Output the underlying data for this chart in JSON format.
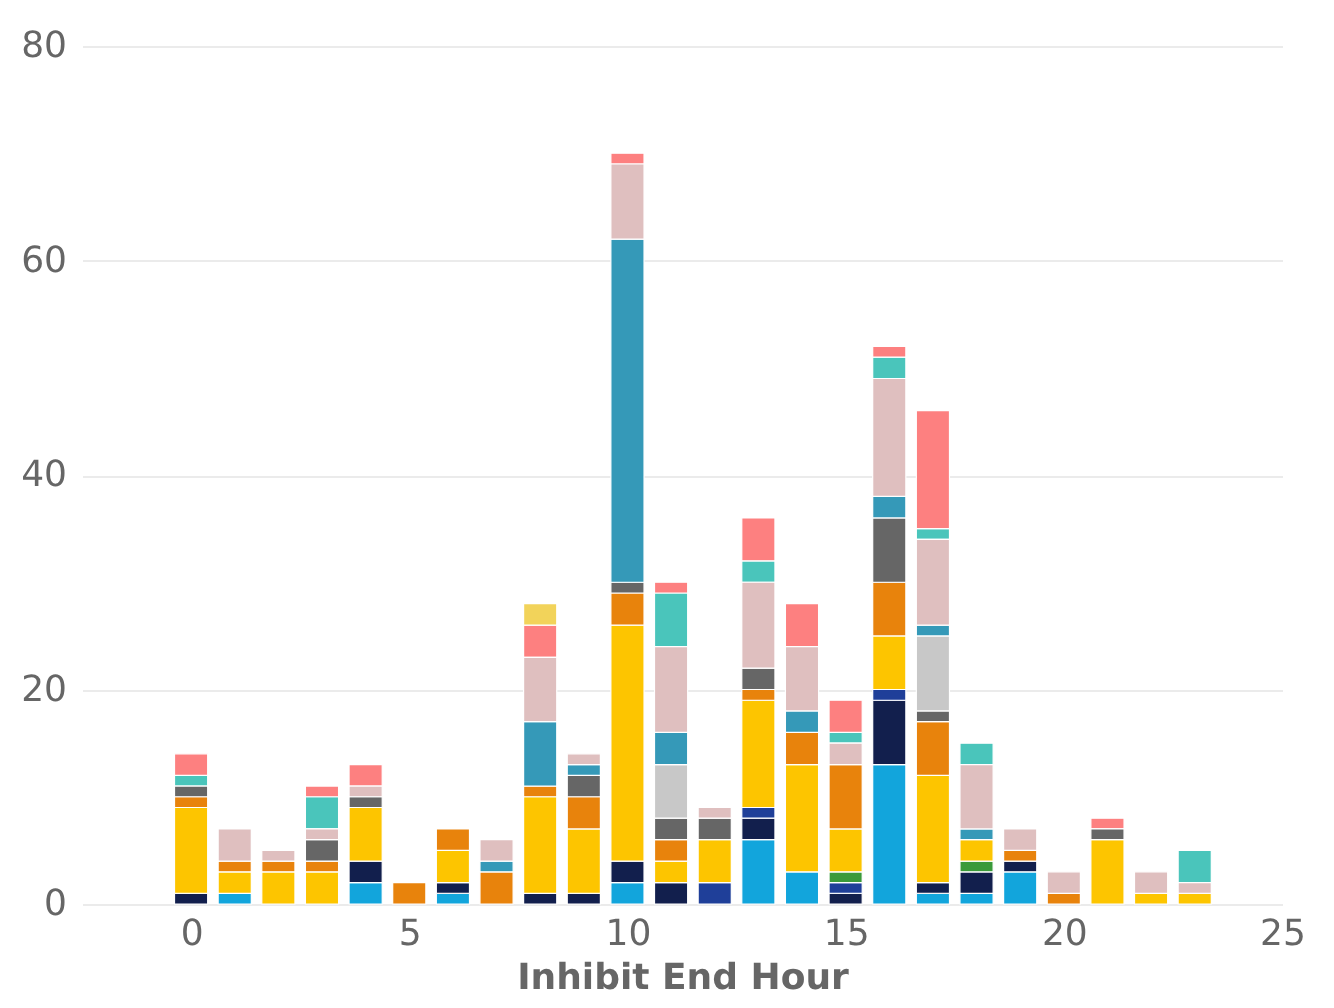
{
  "chart_data": {
    "type": "bar",
    "stacked": true,
    "xlabel": "Inhibit End Hour",
    "x": [
      0,
      1,
      2,
      3,
      4,
      5,
      6,
      7,
      8,
      9,
      10,
      11,
      12,
      13,
      14,
      15,
      16,
      17,
      18,
      19,
      20,
      21,
      22,
      23
    ],
    "xlim": [
      -2.5,
      25
    ],
    "xticks": [
      0,
      5,
      10,
      15,
      20,
      25
    ],
    "ylim": [
      0,
      80
    ],
    "yticks": [
      0,
      20,
      40,
      60,
      80
    ],
    "grid": "y",
    "legend": false,
    "series": [
      {
        "color": "#12a5dc",
        "values": [
          null,
          1,
          null,
          null,
          2,
          null,
          1,
          null,
          null,
          null,
          2,
          null,
          null,
          6,
          3,
          null,
          13,
          1,
          1,
          3,
          null,
          null,
          null,
          null
        ]
      },
      {
        "color": "#121f4d",
        "values": [
          1,
          null,
          null,
          null,
          2,
          null,
          1,
          null,
          1,
          1,
          2,
          2,
          null,
          2,
          null,
          1,
          6,
          1,
          2,
          1,
          null,
          null,
          null,
          null
        ]
      },
      {
        "color": "#1f3f99",
        "values": [
          null,
          null,
          null,
          null,
          null,
          null,
          null,
          null,
          null,
          null,
          null,
          null,
          2,
          1,
          null,
          1,
          1,
          null,
          null,
          null,
          null,
          null,
          null,
          null
        ]
      },
      {
        "color": "#3a9a3a",
        "values": [
          null,
          null,
          null,
          null,
          null,
          null,
          null,
          null,
          null,
          null,
          null,
          null,
          null,
          null,
          null,
          1,
          null,
          null,
          1,
          null,
          null,
          null,
          null,
          null
        ]
      },
      {
        "color": "#fdc500",
        "values": [
          8,
          2,
          3,
          3,
          5,
          null,
          3,
          null,
          9,
          6,
          22,
          2,
          4,
          10,
          10,
          4,
          5,
          10,
          2,
          null,
          null,
          6,
          1,
          1
        ]
      },
      {
        "color": "#e8830c",
        "values": [
          1,
          1,
          1,
          1,
          null,
          2,
          2,
          3,
          1,
          3,
          3,
          2,
          null,
          1,
          3,
          6,
          5,
          5,
          null,
          1,
          1,
          null,
          null,
          null
        ]
      },
      {
        "color": "#666666",
        "values": [
          1,
          null,
          null,
          2,
          1,
          null,
          null,
          null,
          null,
          2,
          1,
          2,
          2,
          2,
          null,
          null,
          6,
          1,
          null,
          null,
          null,
          1,
          null,
          null
        ]
      },
      {
        "color": "#c8c8c8",
        "values": [
          null,
          null,
          null,
          null,
          null,
          null,
          null,
          null,
          null,
          null,
          null,
          5,
          null,
          null,
          null,
          null,
          null,
          7,
          null,
          null,
          null,
          null,
          null,
          null
        ]
      },
      {
        "color": "#3599b8",
        "values": [
          null,
          null,
          null,
          null,
          null,
          null,
          null,
          1,
          6,
          1,
          32,
          3,
          null,
          null,
          2,
          null,
          2,
          1,
          1,
          null,
          null,
          null,
          null,
          null
        ]
      },
      {
        "color": "#dfbfbf",
        "values": [
          null,
          3,
          1,
          1,
          1,
          null,
          null,
          2,
          6,
          1,
          7,
          8,
          1,
          8,
          6,
          2,
          11,
          8,
          6,
          2,
          2,
          null,
          2,
          1
        ]
      },
      {
        "color": "#4ac5bb",
        "values": [
          1,
          null,
          null,
          3,
          null,
          null,
          null,
          null,
          null,
          null,
          null,
          5,
          null,
          2,
          null,
          1,
          2,
          1,
          2,
          null,
          null,
          null,
          null,
          3
        ]
      },
      {
        "color": "#fd8080",
        "values": [
          2,
          null,
          null,
          1,
          2,
          null,
          null,
          null,
          3,
          null,
          1,
          1,
          null,
          4,
          4,
          3,
          1,
          11,
          null,
          null,
          null,
          1,
          null,
          null
        ]
      },
      {
        "color": "#f2d35a",
        "values": [
          null,
          null,
          null,
          null,
          null,
          null,
          null,
          null,
          2,
          null,
          null,
          null,
          null,
          null,
          null,
          null,
          null,
          null,
          null,
          null,
          null,
          null,
          null,
          null
        ]
      }
    ]
  }
}
